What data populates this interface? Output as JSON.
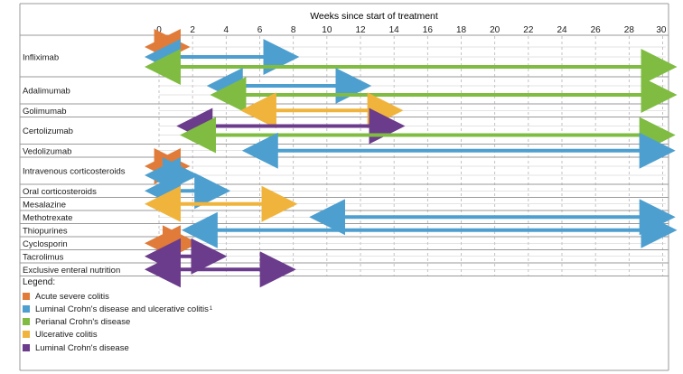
{
  "chart_data": {
    "type": "gantt",
    "title": "Weeks since start of treatment",
    "x_ticks": [
      0,
      2,
      4,
      6,
      8,
      10,
      12,
      14,
      16,
      18,
      20,
      22,
      24,
      26,
      28,
      30
    ],
    "xlim": [
      0,
      30
    ],
    "grid": "vertical dashed",
    "legend_placement": "bottom-left",
    "legend_title": "Legend:",
    "categories": [
      {
        "key": "acute",
        "label": "Acute severe colitis",
        "color": "#e07b39"
      },
      {
        "key": "luminal_uc",
        "label": "Luminal Crohn's disease and ulcerative colitis",
        "sup": "1",
        "color": "#4d9fd0"
      },
      {
        "key": "perianal",
        "label": "Perianal Crohn's disease",
        "color": "#7fbc41"
      },
      {
        "key": "uc",
        "label": "Ulcerative colitis",
        "color": "#f0b43c"
      },
      {
        "key": "luminal_cd",
        "label": "Luminal Crohn's disease",
        "color": "#6b3b8c"
      }
    ],
    "drugs": [
      {
        "name": "Infliximab",
        "bars": [
          {
            "category": "acute",
            "start": 0,
            "end": 1
          },
          {
            "category": "luminal_uc",
            "start": 0,
            "end": 7.5
          },
          {
            "category": "perianal",
            "start": 0,
            "end": 30
          }
        ]
      },
      {
        "name": "Adalimumab",
        "bars": [
          {
            "category": "luminal_uc",
            "start": 3.7,
            "end": 11.8
          },
          {
            "category": "perianal",
            "start": 3.9,
            "end": 30
          }
        ]
      },
      {
        "name": "Golimumab",
        "bars": [
          {
            "category": "uc",
            "start": 5.7,
            "end": 13.7
          }
        ]
      },
      {
        "name": "Certolizumab",
        "bars": [
          {
            "category": "luminal_cd",
            "start": 1.9,
            "end": 13.8
          },
          {
            "category": "perianal",
            "start": 2.1,
            "end": 29.9
          }
        ]
      },
      {
        "name": "Vedolizumab",
        "bars": [
          {
            "category": "luminal_uc",
            "start": 5.8,
            "end": 29.9
          }
        ]
      },
      {
        "name": "Intravenous corticosteroids",
        "bars": [
          {
            "category": "acute",
            "start": 0,
            "end": 1
          },
          {
            "category": "luminal_uc",
            "start": 0,
            "end": 1.5
          }
        ]
      },
      {
        "name": "Oral corticosteroids",
        "bars": [
          {
            "category": "luminal_uc",
            "start": 0,
            "end": 3.4
          }
        ]
      },
      {
        "name": "Mesalazine",
        "bars": [
          {
            "category": "uc",
            "start": 0,
            "end": 7.4
          }
        ]
      },
      {
        "name": "Methotrexate",
        "bars": [
          {
            "category": "luminal_uc",
            "start": 9.8,
            "end": 29.9
          }
        ]
      },
      {
        "name": "Thiopurines",
        "bars": [
          {
            "category": "luminal_uc",
            "start": 2.2,
            "end": 30
          }
        ]
      },
      {
        "name": "Cyclosporin",
        "bars": [
          {
            "category": "acute",
            "start": 0,
            "end": 1.5
          }
        ]
      },
      {
        "name": "Tacrolimus",
        "bars": [
          {
            "category": "luminal_cd",
            "start": 0,
            "end": 3.2
          }
        ]
      },
      {
        "name": "Exclusive enteral nutrition",
        "bars": [
          {
            "category": "luminal_cd",
            "start": 0,
            "end": 7.3
          }
        ]
      }
    ]
  }
}
